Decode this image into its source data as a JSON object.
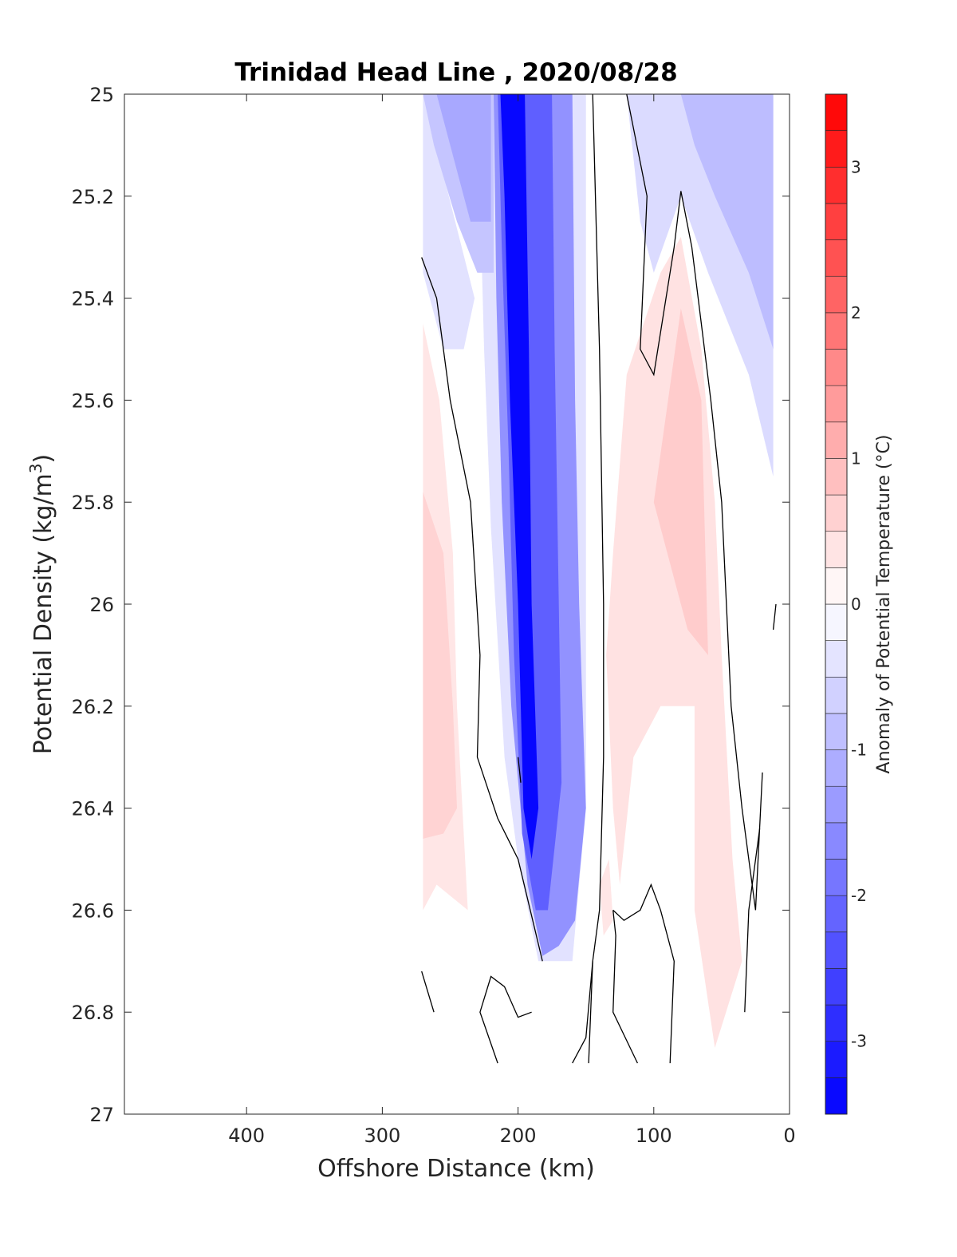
{
  "chart_data": {
    "type": "heatmap",
    "title": "Trinidad Head Line , 2020/08/28",
    "xlabel": "Offshore Distance (km)",
    "ylabel_main": "Potential Density (kg/m",
    "ylabel_sup": "3",
    "ylabel_close": ")",
    "colorbar_label": "Anomaly of Potential Temperature (°C)",
    "xlim": [
      490,
      0
    ],
    "x_reversed": true,
    "ylim": [
      25,
      27
    ],
    "y_reversed": true,
    "x_ticks": [
      400,
      300,
      200,
      100,
      0
    ],
    "x_tick_labels": [
      "400",
      "300",
      "200",
      "100",
      "0"
    ],
    "y_ticks": [
      25,
      25.2,
      25.4,
      25.6,
      25.8,
      26,
      26.2,
      26.4,
      26.6,
      26.8,
      27
    ],
    "y_tick_labels": [
      "25",
      "25.2",
      "25.4",
      "25.6",
      "25.8",
      "26",
      "26.2",
      "26.4",
      "26.6",
      "26.8",
      "27"
    ],
    "colorbar_range": [
      -3.5,
      3.5
    ],
    "colorbar_ticks": [
      3,
      2,
      1,
      0,
      -1,
      -2,
      -3
    ],
    "colorbar_tick_labels": [
      "3",
      "2",
      "1",
      "0",
      "-1",
      "-2",
      "-3"
    ],
    "colorbar_step": 0.25,
    "colors": {
      "cold": "#0000ff",
      "warm": "#ff0000",
      "neutral": "#ffffff",
      "contour": "#000000"
    },
    "grid": false,
    "anomaly_regions": [
      {
        "label": "cold-fringe-west",
        "value": -0.4,
        "points": [
          [
            270,
            25.0
          ],
          [
            230,
            25.0
          ],
          [
            225,
            25.5
          ],
          [
            220,
            25.85
          ],
          [
            210,
            26.3
          ],
          [
            200,
            26.5
          ],
          [
            185,
            26.7
          ],
          [
            160,
            26.7
          ],
          [
            150,
            26.4
          ],
          [
            150,
            25.0
          ],
          [
            215,
            25.0
          ],
          [
            240,
            25.0
          ],
          [
            270,
            25.0
          ],
          [
            270,
            25.35
          ],
          [
            255,
            25.5
          ],
          [
            240,
            25.5
          ],
          [
            232,
            25.4
          ]
        ]
      },
      {
        "label": "cold-upper-left-zone",
        "value": -0.8,
        "points": [
          [
            270,
            25.0
          ],
          [
            218,
            25.0
          ],
          [
            218,
            25.35
          ],
          [
            230,
            25.35
          ],
          [
            245,
            25.25
          ],
          [
            262,
            25.1
          ]
        ]
      },
      {
        "label": "cold-upper-left-core",
        "value": -1.2,
        "points": [
          [
            260,
            25.0
          ],
          [
            220,
            25.0
          ],
          [
            220,
            25.25
          ],
          [
            235,
            25.25
          ],
          [
            250,
            25.1
          ]
        ]
      },
      {
        "label": "cold-band-outer",
        "value": -1.5,
        "points": [
          [
            218,
            25.0
          ],
          [
            160,
            25.0
          ],
          [
            158,
            25.6
          ],
          [
            155,
            26.0
          ],
          [
            150,
            26.4
          ],
          [
            158,
            26.62
          ],
          [
            170,
            26.67
          ],
          [
            182,
            26.69
          ],
          [
            193,
            26.55
          ],
          [
            205,
            26.2
          ],
          [
            212,
            25.8
          ],
          [
            216,
            25.4
          ]
        ]
      },
      {
        "label": "cold-band-mid",
        "value": -2.2,
        "points": [
          [
            215,
            25.0
          ],
          [
            175,
            25.0
          ],
          [
            173,
            25.5
          ],
          [
            170,
            26.0
          ],
          [
            168,
            26.35
          ],
          [
            178,
            26.6
          ],
          [
            187,
            26.6
          ],
          [
            197,
            26.45
          ],
          [
            203,
            26.1
          ],
          [
            207,
            25.7
          ],
          [
            212,
            25.3
          ]
        ]
      },
      {
        "label": "cold-band-core",
        "value": -3.4,
        "points": [
          [
            213,
            25.0
          ],
          [
            195,
            25.0
          ],
          [
            192,
            25.5
          ],
          [
            190,
            26.0
          ],
          [
            185,
            26.4
          ],
          [
            190,
            26.5
          ],
          [
            196,
            26.4
          ],
          [
            200,
            26.0
          ],
          [
            206,
            25.6
          ],
          [
            210,
            25.2
          ]
        ]
      },
      {
        "label": "cold-top-right",
        "value": -0.5,
        "points": [
          [
            120,
            25.0
          ],
          [
            12,
            25.0
          ],
          [
            12,
            25.75
          ],
          [
            30,
            25.55
          ],
          [
            60,
            25.35
          ],
          [
            80,
            25.2
          ],
          [
            100,
            25.35
          ],
          [
            110,
            25.25
          ]
        ]
      },
      {
        "label": "cold-top-right-inner",
        "value": -0.9,
        "points": [
          [
            80,
            25.0
          ],
          [
            12,
            25.0
          ],
          [
            12,
            25.5
          ],
          [
            30,
            25.35
          ],
          [
            55,
            25.2
          ],
          [
            70,
            25.1
          ]
        ]
      },
      {
        "label": "warm-right",
        "value": 0.4,
        "points": [
          [
            130,
            25.9
          ],
          [
            120,
            25.55
          ],
          [
            95,
            25.35
          ],
          [
            80,
            25.28
          ],
          [
            65,
            25.5
          ],
          [
            55,
            25.8
          ],
          [
            50,
            26.1
          ],
          [
            42,
            26.5
          ],
          [
            35,
            26.7
          ],
          [
            55,
            26.87
          ],
          [
            70,
            26.6
          ],
          [
            70,
            26.2
          ],
          [
            95,
            26.2
          ],
          [
            115,
            26.3
          ],
          [
            125,
            26.55
          ],
          [
            130,
            26.4
          ],
          [
            135,
            26.1
          ]
        ]
      },
      {
        "label": "warm-right-core",
        "value": 0.7,
        "points": [
          [
            100,
            25.8
          ],
          [
            80,
            25.42
          ],
          [
            65,
            25.6
          ],
          [
            62,
            25.9
          ],
          [
            60,
            26.1
          ],
          [
            75,
            26.05
          ],
          [
            90,
            25.9
          ]
        ]
      },
      {
        "label": "warm-left",
        "value": 0.35,
        "points": [
          [
            270,
            25.45
          ],
          [
            258,
            25.6
          ],
          [
            248,
            25.9
          ],
          [
            245,
            26.2
          ],
          [
            237,
            26.6
          ],
          [
            260,
            26.55
          ],
          [
            270,
            26.6
          ]
        ]
      },
      {
        "label": "warm-left-core",
        "value": 0.6,
        "points": [
          [
            270,
            25.78
          ],
          [
            255,
            25.9
          ],
          [
            248,
            26.2
          ],
          [
            245,
            26.4
          ],
          [
            255,
            26.45
          ],
          [
            270,
            26.46
          ]
        ]
      },
      {
        "label": "warm-small-lower",
        "value": 0.35,
        "points": [
          [
            140,
            26.55
          ],
          [
            133,
            26.5
          ],
          [
            130,
            26.62
          ],
          [
            137,
            26.65
          ]
        ]
      }
    ],
    "contours": [
      {
        "label": "zero-contour-west",
        "points": [
          [
            271,
            25.32
          ],
          [
            260,
            25.4
          ],
          [
            250,
            25.6
          ],
          [
            235,
            25.8
          ],
          [
            228,
            26.1
          ],
          [
            230,
            26.3
          ],
          [
            215,
            26.42
          ],
          [
            200,
            26.5
          ],
          [
            182,
            26.7
          ]
        ]
      },
      {
        "label": "zero-contour-east",
        "points": [
          [
            145,
            25.0
          ],
          [
            140,
            25.5
          ],
          [
            137,
            26.0
          ],
          [
            137,
            26.3
          ],
          [
            140,
            26.6
          ],
          [
            145,
            26.7
          ],
          [
            148,
            26.9
          ]
        ]
      },
      {
        "label": "zero-contour-right-loop",
        "points": [
          [
            120,
            25.0
          ],
          [
            105,
            25.2
          ],
          [
            110,
            25.5
          ],
          [
            100,
            25.55
          ],
          [
            85,
            25.3
          ],
          [
            80,
            25.19
          ],
          [
            72,
            25.3
          ],
          [
            58,
            25.6
          ],
          [
            50,
            25.8
          ],
          [
            43,
            26.2
          ],
          [
            35,
            26.4
          ],
          [
            25,
            26.6
          ],
          [
            20,
            26.33
          ]
        ]
      },
      {
        "label": "zero-contour-lower-1",
        "points": [
          [
            271,
            26.72
          ],
          [
            262,
            26.8
          ]
        ]
      },
      {
        "label": "zero-contour-lower-2",
        "points": [
          [
            215,
            26.9
          ],
          [
            228,
            26.8
          ],
          [
            220,
            26.73
          ],
          [
            210,
            26.75
          ],
          [
            200,
            26.81
          ],
          [
            190,
            26.8
          ]
        ]
      },
      {
        "label": "zero-contour-lower-3",
        "points": [
          [
            160,
            26.9
          ],
          [
            150,
            26.85
          ],
          [
            145,
            26.7
          ]
        ]
      },
      {
        "label": "zero-contour-lower-4",
        "points": [
          [
            130,
            26.6
          ],
          [
            128,
            26.65
          ],
          [
            130,
            26.8
          ],
          [
            112,
            26.9
          ]
        ]
      },
      {
        "label": "zero-contour-lower-5",
        "points": [
          [
            130,
            26.6
          ],
          [
            122,
            26.62
          ],
          [
            110,
            26.6
          ],
          [
            102,
            26.55
          ],
          [
            95,
            26.6
          ],
          [
            85,
            26.7
          ],
          [
            88,
            26.9
          ]
        ]
      },
      {
        "label": "zero-contour-lower-6",
        "points": [
          [
            22,
            26.44
          ],
          [
            30,
            26.6
          ],
          [
            33,
            26.8
          ]
        ]
      },
      {
        "label": "zero-contour-small-1",
        "points": [
          [
            200,
            26.3
          ],
          [
            198,
            26.35
          ]
        ]
      },
      {
        "label": "zero-contour-small-2",
        "points": [
          [
            12,
            26.05
          ],
          [
            10,
            26.0
          ]
        ]
      }
    ]
  }
}
